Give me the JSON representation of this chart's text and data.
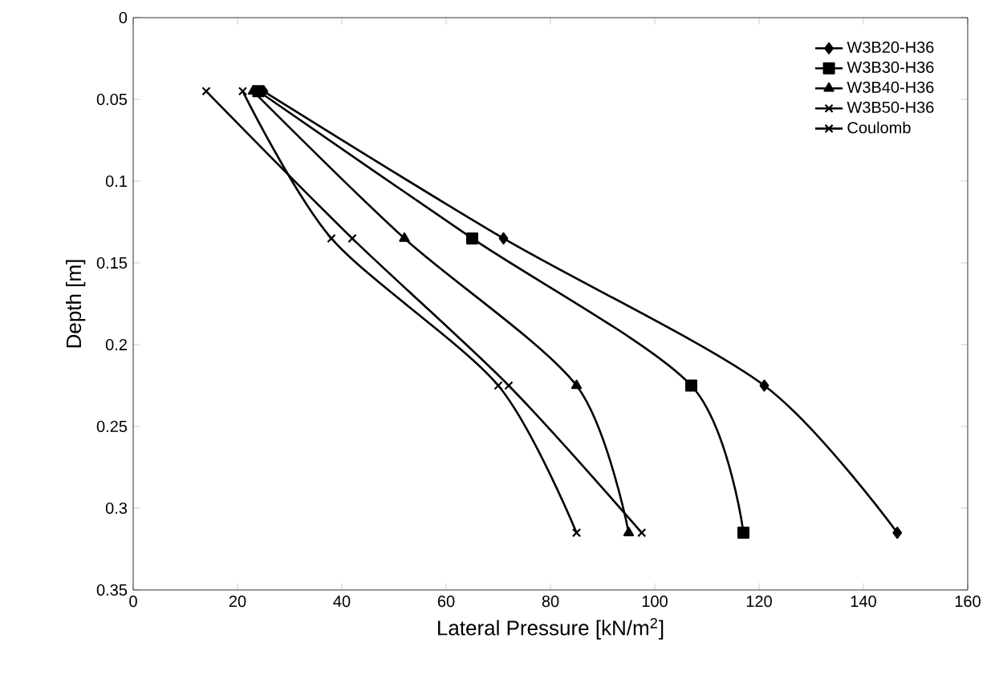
{
  "chart_data": {
    "type": "line",
    "xlabel": "Lateral Pressure [kN/m$^{2}$]",
    "ylabel": "Depth [m]",
    "xlim": [
      0,
      160
    ],
    "ylim": [
      0.35,
      0
    ],
    "xticks": [
      0,
      20,
      40,
      60,
      80,
      100,
      120,
      140,
      160
    ],
    "yticks": [
      0,
      0.05,
      0.1,
      0.15,
      0.2,
      0.25,
      0.3,
      0.35
    ],
    "legend": "top right",
    "grid": false,
    "series": [
      {
        "name": "W3B20-H36",
        "color": "#000000",
        "marker": "diamond",
        "x": [
          25,
          71,
          121,
          146.5
        ],
        "values": [
          0.045,
          0.135,
          0.225,
          0.315
        ]
      },
      {
        "name": "W3B30-H36",
        "color": "#000000",
        "marker": "square",
        "x": [
          24,
          65,
          107,
          117
        ],
        "values": [
          0.045,
          0.135,
          0.225,
          0.315
        ]
      },
      {
        "name": "W3B40-H36",
        "color": "#000000",
        "marker": "triangle",
        "x": [
          23,
          52,
          85,
          95
        ],
        "values": [
          0.045,
          0.135,
          0.225,
          0.315
        ]
      },
      {
        "name": "W3B50-H36",
        "color": "#000000",
        "marker": "cross",
        "x": [
          21,
          38,
          70,
          85
        ],
        "values": [
          0.045,
          0.135,
          0.225,
          0.315
        ]
      },
      {
        "name": "Coulomb",
        "color": "#000000",
        "marker": "cross",
        "x": [
          14,
          42,
          72,
          97.5
        ],
        "values": [
          0.045,
          0.135,
          0.225,
          0.315
        ]
      }
    ]
  }
}
